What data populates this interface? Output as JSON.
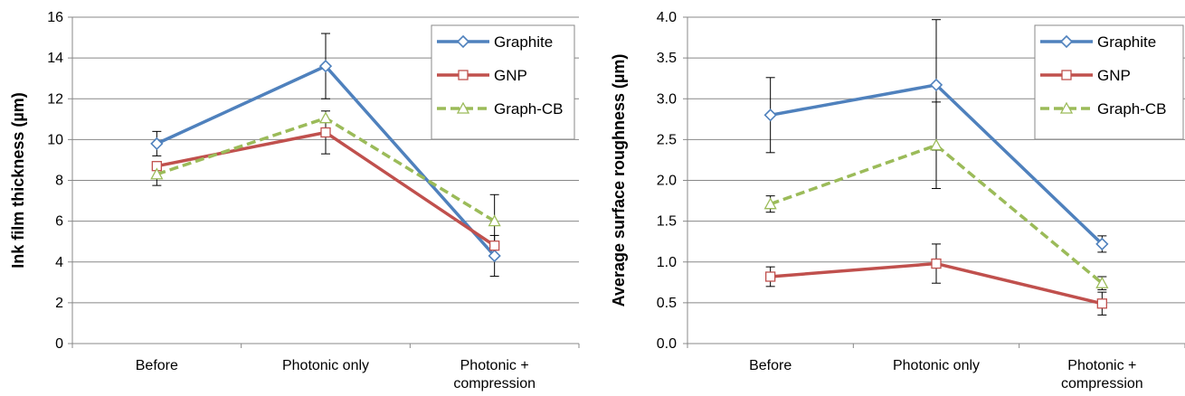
{
  "chart_data": [
    {
      "type": "line",
      "title": "",
      "xlabel": "",
      "ylabel": "Ink film thickness (µm)",
      "categories": [
        "Before",
        "Photonic only",
        "Photonic +|compression"
      ],
      "ylim": [
        0,
        16
      ],
      "yticks": [
        0,
        2,
        4,
        6,
        8,
        10,
        12,
        14,
        16
      ],
      "ytick_labels": [
        "0",
        "2",
        "4",
        "6",
        "8",
        "10",
        "12",
        "14",
        "16"
      ],
      "grid": true,
      "legend": "top-right",
      "series": [
        {
          "name": "Graphite",
          "values": [
            9.8,
            13.6,
            4.3
          ],
          "errors": [
            0.6,
            1.6,
            1.0
          ],
          "color": "#4F81BD",
          "marker": "diamond",
          "dash": "solid"
        },
        {
          "name": "GNP",
          "values": [
            8.7,
            10.35,
            4.8
          ],
          "errors": [
            0.0,
            1.05,
            0.0
          ],
          "color": "#C0504D",
          "marker": "square",
          "dash": "solid"
        },
        {
          "name": "Graph-CB",
          "values": [
            8.3,
            11.05,
            6.0
          ],
          "errors": [
            0.55,
            0.0,
            1.3
          ],
          "color": "#9BBB59",
          "marker": "triangle",
          "dash": "dashed"
        }
      ]
    },
    {
      "type": "line",
      "title": "",
      "xlabel": "",
      "ylabel": "Average surface roughness (µm)",
      "categories": [
        "Before",
        "Photonic only",
        "Photonic +|compression"
      ],
      "ylim": [
        0,
        4
      ],
      "yticks": [
        0,
        0.5,
        1,
        1.5,
        2,
        2.5,
        3,
        3.5,
        4
      ],
      "ytick_labels": [
        "0.0",
        "0.5",
        "1.0",
        "1.5",
        "2.0",
        "2.5",
        "3.0",
        "3.5",
        "4.0"
      ],
      "grid": true,
      "legend": "top-right",
      "series": [
        {
          "name": "Graphite",
          "values": [
            2.8,
            3.17,
            1.22
          ],
          "errors": [
            0.46,
            0.8,
            0.1
          ],
          "color": "#4F81BD",
          "marker": "diamond",
          "dash": "solid"
        },
        {
          "name": "GNP",
          "values": [
            0.82,
            0.98,
            0.49
          ],
          "errors": [
            0.12,
            0.24,
            0.14
          ],
          "color": "#C0504D",
          "marker": "square",
          "dash": "solid"
        },
        {
          "name": "Graph-CB",
          "values": [
            1.71,
            2.43,
            0.74
          ],
          "errors": [
            0.1,
            0.53,
            0.08
          ],
          "color": "#9BBB59",
          "marker": "triangle",
          "dash": "dashed"
        }
      ]
    }
  ]
}
